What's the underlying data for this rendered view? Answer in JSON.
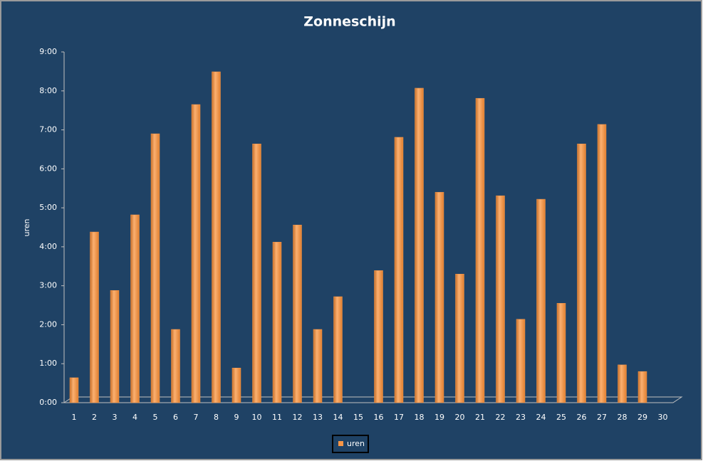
{
  "chart_data": {
    "type": "bar",
    "title": "Zonneschijn",
    "y_label": "uren",
    "categories": [
      "1",
      "2",
      "3",
      "4",
      "5",
      "6",
      "7",
      "8",
      "9",
      "10",
      "11",
      "12",
      "13",
      "14",
      "15",
      "16",
      "17",
      "18",
      "19",
      "20",
      "21",
      "22",
      "23",
      "24",
      "25",
      "26",
      "27",
      "28",
      "29",
      "30"
    ],
    "series": [
      {
        "name": "uren",
        "color": "#f79646",
        "values": [
          0.64,
          4.38,
          2.88,
          4.82,
          6.9,
          1.88,
          7.65,
          8.49,
          0.89,
          6.64,
          4.12,
          4.56,
          1.88,
          2.72,
          0,
          3.39,
          6.81,
          8.07,
          5.4,
          3.3,
          7.81,
          5.31,
          2.14,
          5.22,
          2.55,
          6.64,
          7.14,
          0.97,
          0.8,
          null
        ]
      }
    ],
    "ylim": [
      0,
      9
    ],
    "yticks": [
      {
        "value": 0,
        "label": "0:00"
      },
      {
        "value": 1,
        "label": "1:00"
      },
      {
        "value": 2,
        "label": "2:00"
      },
      {
        "value": 3,
        "label": "3:00"
      },
      {
        "value": 4,
        "label": "4:00"
      },
      {
        "value": 5,
        "label": "5:00"
      },
      {
        "value": 6,
        "label": "6:00"
      },
      {
        "value": 7,
        "label": "7:00"
      },
      {
        "value": 8,
        "label": "8:00"
      },
      {
        "value": 9,
        "label": "9:00"
      }
    ],
    "legend": "bottom"
  }
}
